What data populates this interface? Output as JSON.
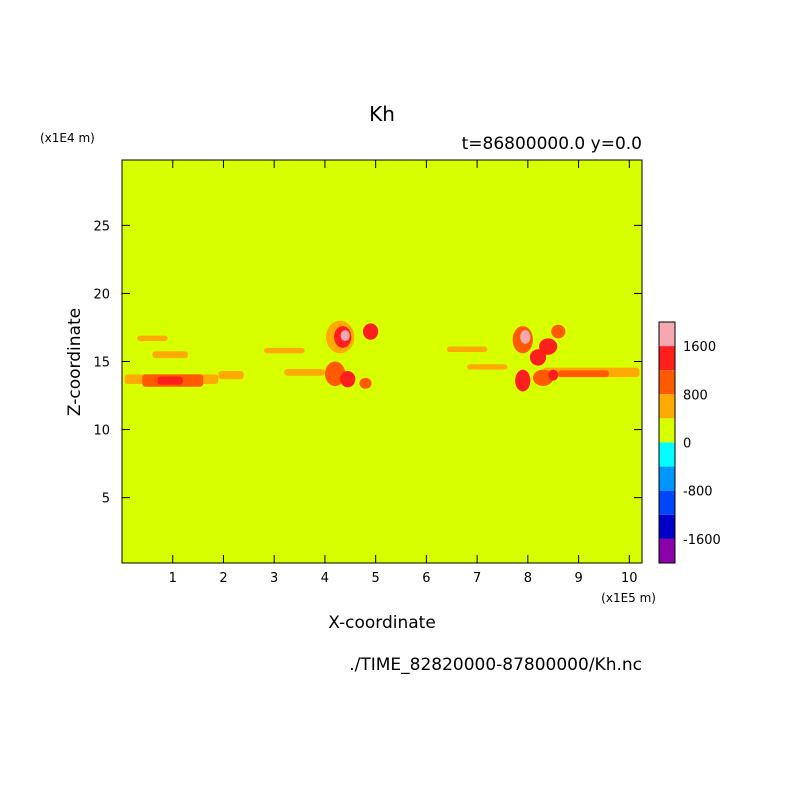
{
  "chart_data": {
    "type": "heatmap",
    "title": "Kh",
    "subtitle": "t=86800000.0 y=0.0",
    "xlabel": "X-coordinate",
    "ylabel": "Z-coordinate",
    "x_unit": "(x1E5 m)",
    "y_unit": "(x1E4 m)",
    "source_file": "./TIME_82820000-87800000/Kh.nc",
    "xlim": [
      0,
      10.25
    ],
    "ylim": [
      0.2,
      29.8
    ],
    "xticks": [
      "1",
      "2",
      "3",
      "4",
      "5",
      "6",
      "7",
      "8",
      "9",
      "10"
    ],
    "xtick_values": [
      1,
      2,
      3,
      4,
      5,
      6,
      7,
      8,
      9,
      10
    ],
    "yticks": [
      "5",
      "10",
      "15",
      "20",
      "25"
    ],
    "ytick_values": [
      5,
      10,
      15,
      20,
      25
    ],
    "background_value": 0,
    "colorbar": {
      "labels": [
        "1600",
        "800",
        "0",
        "-800",
        "-1600"
      ],
      "label_values": [
        1600,
        800,
        0,
        -800,
        -1600
      ],
      "levels": [
        {
          "from": 1600,
          "to": 2000,
          "color": "#f5a8b0"
        },
        {
          "from": 1200,
          "to": 1600,
          "color": "#ff1e1e"
        },
        {
          "from": 800,
          "to": 1200,
          "color": "#ff5a00"
        },
        {
          "from": 400,
          "to": 800,
          "color": "#ffaa00"
        },
        {
          "from": 0,
          "to": 400,
          "color": "#d7ff00"
        },
        {
          "from": -400,
          "to": 0,
          "color": "#00ffff"
        },
        {
          "from": -800,
          "to": -400,
          "color": "#0096ff"
        },
        {
          "from": -1200,
          "to": -800,
          "color": "#0046ff"
        },
        {
          "from": -1600,
          "to": -1200,
          "color": "#0000c8"
        },
        {
          "from": -2000,
          "to": -1600,
          "color": "#8c00aa"
        }
      ]
    },
    "features": [
      {
        "kind": "band",
        "x0": 0.05,
        "x1": 1.9,
        "z": 13.7,
        "h": 0.7,
        "value": 600
      },
      {
        "kind": "band",
        "x0": 0.4,
        "x1": 1.6,
        "z": 13.6,
        "h": 0.9,
        "value": 1000
      },
      {
        "kind": "band",
        "x0": 0.7,
        "x1": 1.2,
        "z": 13.6,
        "h": 0.6,
        "value": 1400
      },
      {
        "kind": "band",
        "x0": 0.6,
        "x1": 1.3,
        "z": 15.5,
        "h": 0.5,
        "value": 600
      },
      {
        "kind": "band",
        "x0": 0.3,
        "x1": 0.9,
        "z": 16.7,
        "h": 0.4,
        "value": 600
      },
      {
        "kind": "band",
        "x0": 1.9,
        "x1": 2.4,
        "z": 14.0,
        "h": 0.6,
        "value": 600
      },
      {
        "kind": "band",
        "x0": 3.2,
        "x1": 4.0,
        "z": 14.2,
        "h": 0.5,
        "value": 600
      },
      {
        "kind": "band",
        "x0": 2.8,
        "x1": 3.6,
        "z": 15.8,
        "h": 0.4,
        "value": 600
      },
      {
        "kind": "blob",
        "x": 4.3,
        "z": 16.8,
        "rx": 0.28,
        "rz": 1.2,
        "value": 600
      },
      {
        "kind": "blob",
        "x": 4.35,
        "z": 16.8,
        "rx": 0.17,
        "rz": 0.8,
        "value": 1400
      },
      {
        "kind": "blob",
        "x": 4.4,
        "z": 16.9,
        "rx": 0.09,
        "rz": 0.4,
        "value": 1800
      },
      {
        "kind": "blob",
        "x": 4.9,
        "z": 17.2,
        "rx": 0.15,
        "rz": 0.6,
        "value": 1400
      },
      {
        "kind": "blob",
        "x": 4.2,
        "z": 14.1,
        "rx": 0.2,
        "rz": 0.9,
        "value": 1000
      },
      {
        "kind": "blob",
        "x": 4.45,
        "z": 13.7,
        "rx": 0.15,
        "rz": 0.6,
        "value": 1400
      },
      {
        "kind": "blob",
        "x": 4.8,
        "z": 13.4,
        "rx": 0.12,
        "rz": 0.4,
        "value": 1000
      },
      {
        "kind": "band",
        "x0": 6.4,
        "x1": 7.2,
        "z": 15.9,
        "h": 0.4,
        "value": 600
      },
      {
        "kind": "band",
        "x0": 6.8,
        "x1": 7.6,
        "z": 14.6,
        "h": 0.4,
        "value": 600
      },
      {
        "kind": "band",
        "x0": 8.3,
        "x1": 10.2,
        "z": 14.2,
        "h": 0.7,
        "value": 600
      },
      {
        "kind": "band",
        "x0": 8.6,
        "x1": 9.6,
        "z": 14.1,
        "h": 0.5,
        "value": 1000
      },
      {
        "kind": "blob",
        "x": 7.9,
        "z": 16.6,
        "rx": 0.2,
        "rz": 1.0,
        "value": 1000
      },
      {
        "kind": "blob",
        "x": 7.95,
        "z": 16.8,
        "rx": 0.1,
        "rz": 0.5,
        "value": 1800
      },
      {
        "kind": "blob",
        "x": 8.2,
        "z": 15.3,
        "rx": 0.16,
        "rz": 0.6,
        "value": 1400
      },
      {
        "kind": "blob",
        "x": 8.4,
        "z": 16.1,
        "rx": 0.18,
        "rz": 0.6,
        "value": 1400
      },
      {
        "kind": "blob",
        "x": 8.6,
        "z": 17.2,
        "rx": 0.14,
        "rz": 0.5,
        "value": 1000
      },
      {
        "kind": "blob",
        "x": 7.9,
        "z": 13.6,
        "rx": 0.15,
        "rz": 0.8,
        "value": 1400
      },
      {
        "kind": "blob",
        "x": 8.3,
        "z": 13.8,
        "rx": 0.2,
        "rz": 0.6,
        "value": 1000
      },
      {
        "kind": "blob",
        "x": 8.5,
        "z": 14.0,
        "rx": 0.1,
        "rz": 0.4,
        "value": 1400
      }
    ]
  }
}
